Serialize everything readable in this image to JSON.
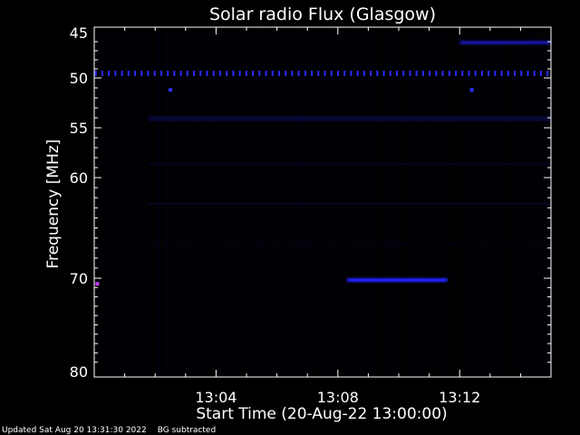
{
  "chart_data": {
    "type": "heatmap",
    "title": "Solar radio Flux (Glasgow)",
    "xlabel": "Start Time (20-Aug-22 13:00:00)",
    "ylabel": "Frequency [MHz]",
    "x_unit": "minutes after 13:00:00",
    "xlim": [
      0,
      15
    ],
    "ylim": [
      45,
      80
    ],
    "y_reversed": true,
    "x_ticks": [
      {
        "value": 4,
        "label": "13:04"
      },
      {
        "value": 8,
        "label": "13:08"
      },
      {
        "value": 12,
        "label": "13:12"
      }
    ],
    "y_ticks": [
      {
        "value": 45,
        "label": "45"
      },
      {
        "value": 50,
        "label": "50"
      },
      {
        "value": 55,
        "label": "55"
      },
      {
        "value": 60,
        "label": "60"
      },
      {
        "value": 70,
        "label": "70"
      },
      {
        "value": 80,
        "label": "80"
      }
    ],
    "background_color": "#000000",
    "signal_color": "#1a1aff",
    "features": [
      {
        "kind": "dotted_band",
        "freq": 49.5,
        "t_start": 0,
        "t_end": 15,
        "color": "#2a2aff"
      },
      {
        "kind": "band",
        "freq": 46.1,
        "t_start": 12.0,
        "t_end": 15,
        "color": "#1818a0"
      },
      {
        "kind": "point",
        "freq": 51.2,
        "t": 2.5,
        "color": "#3030ff"
      },
      {
        "kind": "point",
        "freq": 51.2,
        "t": 12.4,
        "color": "#3030ff"
      },
      {
        "kind": "band",
        "freq": 70.2,
        "t_start": 8.3,
        "t_end": 11.6,
        "color": "#2222ff"
      },
      {
        "kind": "point",
        "freq": 70.6,
        "t": 0.1,
        "color": "#c040ff"
      }
    ]
  },
  "footer": {
    "updated": "Updated Sat Aug 20 13:31:30 2022",
    "note": "BG subtracted"
  }
}
